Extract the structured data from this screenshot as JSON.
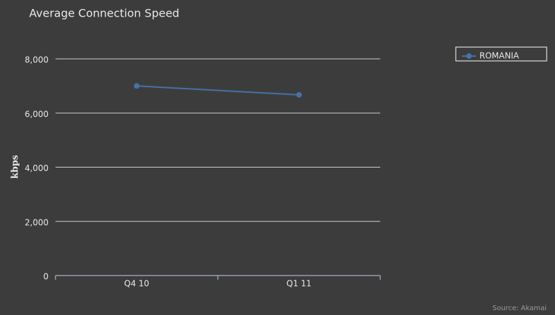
{
  "chart_data": {
    "type": "line",
    "title": "Average Connection Speed",
    "y_label": "kbps",
    "categories": [
      "Q4 10",
      "Q1 11"
    ],
    "series": [
      {
        "name": "ROMANIA",
        "color": "#4572a7",
        "values": [
          7000,
          6670
        ]
      }
    ],
    "ylim": [
      0,
      8000
    ],
    "yticks": [
      0,
      {
        "value": 2000,
        "label": "2,000"
      },
      {
        "value": 4000,
        "label": "4,000"
      },
      {
        "value": 6000,
        "label": "6,000"
      },
      {
        "value": 8000,
        "label": "8,000"
      }
    ],
    "grid": true,
    "legend": "top-right",
    "source": "Source: Akamai"
  }
}
